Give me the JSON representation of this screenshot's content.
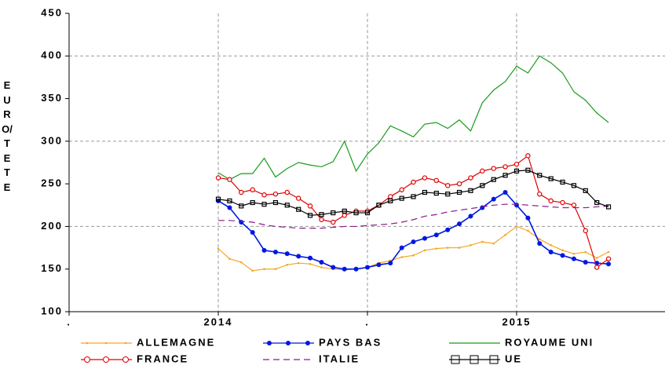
{
  "chart_data": {
    "type": "line",
    "y_label": "EURO/TETE",
    "xlim": [
      2013.5,
      2015.5
    ],
    "xticks": [
      {
        "value": 2013.5,
        "label": "."
      },
      2014,
      {
        "value": 2014.5,
        "label": "."
      },
      2015
    ],
    "ylim": [
      100,
      450
    ],
    "yticks": [
      100,
      150,
      200,
      250,
      300,
      350,
      400,
      450
    ],
    "grid": true,
    "grid_step": 2,
    "x": [
      2014,
      2014.038,
      2014.077,
      2014.115,
      2014.154,
      2014.192,
      2014.231,
      2014.269,
      2014.308,
      2014.346,
      2014.385,
      2014.423,
      2014.462,
      2014.5,
      2014.538,
      2014.577,
      2014.615,
      2014.654,
      2014.692,
      2014.731,
      2014.769,
      2014.808,
      2014.846,
      2014.885,
      2014.923,
      2014.962,
      2015,
      2015.038,
      2015.077,
      2015.115,
      2015.154,
      2015.192,
      2015.231,
      2015.269,
      2015.308
    ],
    "series": [
      {
        "name": "ALLEMAGNE",
        "color": "#f5a623",
        "marker": "dot",
        "dash": false,
        "values": [
          174,
          162,
          158,
          148,
          150,
          150,
          155,
          157,
          156,
          152,
          150,
          149,
          150,
          152,
          157,
          160,
          164,
          166,
          172,
          174,
          175,
          175,
          178,
          182,
          180,
          190,
          200,
          195,
          185,
          178,
          172,
          168,
          170,
          163,
          170
        ]
      },
      {
        "name": "PAYS BAS",
        "color": "#0018e0",
        "marker": "circle",
        "dash": false,
        "values": [
          230,
          222,
          205,
          193,
          172,
          170,
          168,
          165,
          163,
          158,
          152,
          150,
          150,
          152,
          155,
          157,
          175,
          182,
          186,
          190,
          196,
          203,
          212,
          222,
          232,
          240,
          225,
          210,
          180,
          170,
          166,
          162,
          158,
          157,
          156
        ]
      },
      {
        "name": "ROYAUME UNI",
        "color": "#1a9a1a",
        "marker": "none",
        "dash": false,
        "values": [
          263,
          255,
          262,
          262,
          280,
          258,
          268,
          275,
          272,
          270,
          276,
          300,
          265,
          285,
          298,
          318,
          312,
          305,
          320,
          322,
          315,
          325,
          312,
          345,
          360,
          370,
          388,
          380,
          400,
          392,
          380,
          358,
          348,
          333,
          322
        ]
      },
      {
        "name": "FRANCE",
        "color": "#e00000",
        "marker": "ring",
        "dash": false,
        "values": [
          257,
          255,
          240,
          243,
          237,
          238,
          240,
          233,
          224,
          208,
          205,
          213,
          218,
          218,
          225,
          235,
          243,
          252,
          257,
          254,
          248,
          250,
          257,
          265,
          268,
          270,
          273,
          283,
          238,
          230,
          228,
          225,
          195,
          152,
          162
        ]
      },
      {
        "name": "ITALIE",
        "color": "#8a1a8a",
        "marker": "none",
        "dash": true,
        "values": [
          207,
          207,
          206,
          205,
          202,
          200,
          199,
          198,
          198,
          198,
          199,
          200,
          200,
          201,
          202,
          203,
          205,
          208,
          212,
          214,
          217,
          219,
          221,
          223,
          225,
          226,
          226,
          225,
          224,
          223,
          222,
          222,
          222,
          223,
          224
        ]
      },
      {
        "name": "UE",
        "color": "#000000",
        "marker": "square",
        "dash": false,
        "values": [
          232,
          230,
          224,
          228,
          226,
          228,
          225,
          220,
          213,
          214,
          216,
          218,
          216,
          216,
          225,
          230,
          233,
          235,
          240,
          239,
          238,
          240,
          242,
          248,
          255,
          260,
          265,
          266,
          260,
          256,
          252,
          248,
          242,
          228,
          223
        ]
      }
    ]
  }
}
